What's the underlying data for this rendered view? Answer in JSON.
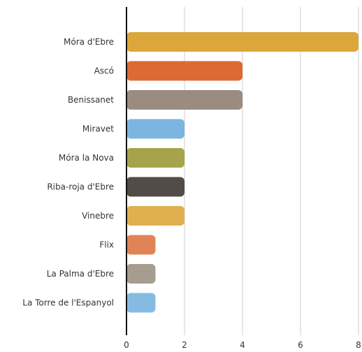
{
  "chart_data": {
    "type": "bar",
    "orientation": "horizontal",
    "categories": [
      "Móra d'Ebre",
      "Ascó",
      "Benissanet",
      "Miravet",
      "Móra la Nova",
      "Riba-roja d'Ebre",
      "Vinebre",
      "Flix",
      "La Palma d'Ebre",
      "La Torre de l'Espanyol"
    ],
    "values": [
      8,
      4,
      4,
      2,
      2,
      2,
      2,
      1,
      1,
      1
    ],
    "colors": [
      "#dba73a",
      "#dd6a32",
      "#9a8c80",
      "#7ab6e0",
      "#a5a44c",
      "#514c45",
      "#e0b04f",
      "#e08457",
      "#a69c90",
      "#85bbe3"
    ],
    "xlim": [
      0,
      8
    ],
    "xticks": [
      0,
      2,
      4,
      6,
      8
    ],
    "grid": true,
    "title": "",
    "xlabel": "",
    "ylabel": ""
  }
}
